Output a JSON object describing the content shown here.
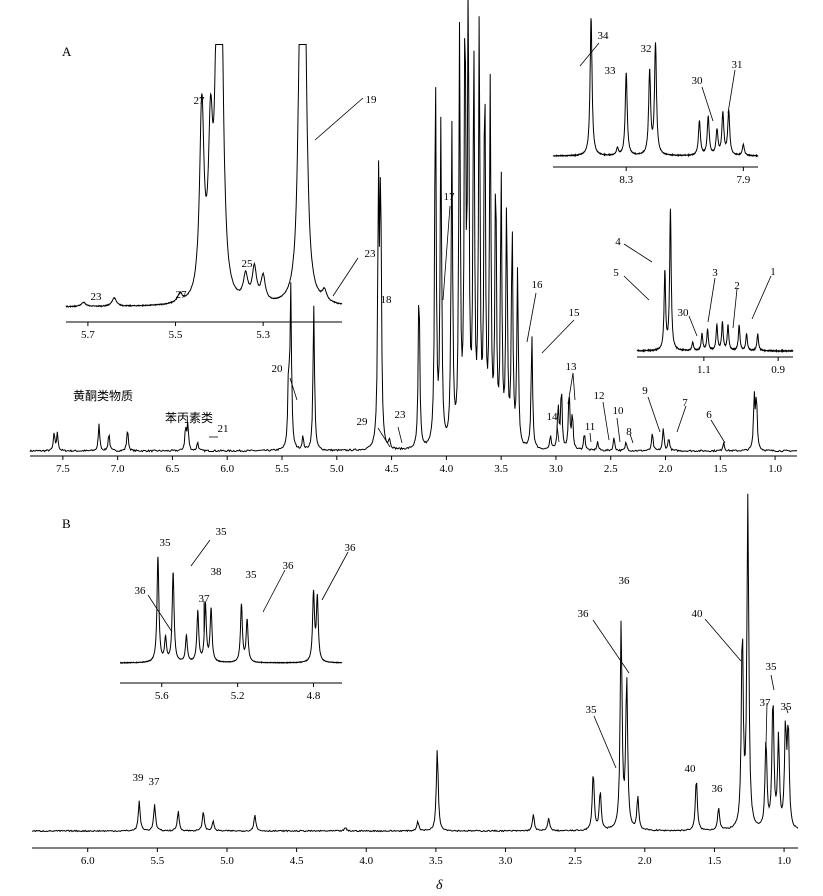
{
  "chart_data": [
    {
      "type": "line",
      "panel_label": "A",
      "xlabel": "",
      "xlim": [
        7.8,
        0.8
      ],
      "x_ticks": [
        "7.5",
        "7.0",
        "6.5",
        "6.0",
        "5.5",
        "5.0",
        "4.5",
        "4.0",
        "3.5",
        "3.0",
        "2.5",
        "2.0",
        "1.5",
        "1.0"
      ],
      "peaks": [
        {
          "x": 7.58,
          "y": 0.04
        },
        {
          "x": 7.55,
          "y": 0.04
        },
        {
          "x": 7.17,
          "y": 0.06
        },
        {
          "x": 7.08,
          "y": 0.04
        },
        {
          "x": 6.91,
          "y": 0.05
        },
        {
          "x": 6.38,
          "y": 0.05
        },
        {
          "x": 6.36,
          "y": 0.06
        },
        {
          "x": 6.27,
          "y": 0.02
        },
        {
          "x": 5.44,
          "y": 0.16
        },
        {
          "x": 5.42,
          "y": 0.36
        },
        {
          "x": 5.31,
          "y": 0.03
        },
        {
          "x": 5.21,
          "y": 0.33
        },
        {
          "x": 4.62,
          "y": 0.58
        },
        {
          "x": 4.6,
          "y": 0.6
        },
        {
          "x": 4.52,
          "y": 0.02
        },
        {
          "x": 4.25,
          "y": 0.38
        },
        {
          "x": 4.1,
          "y": 0.86
        },
        {
          "x": 4.05,
          "y": 0.74
        },
        {
          "x": 3.95,
          "y": 0.72
        },
        {
          "x": 3.88,
          "y": 0.92
        },
        {
          "x": 3.83,
          "y": 0.98
        },
        {
          "x": 3.8,
          "y": 1.0
        },
        {
          "x": 3.75,
          "y": 0.9
        },
        {
          "x": 3.7,
          "y": 0.94
        },
        {
          "x": 3.65,
          "y": 0.85
        },
        {
          "x": 3.6,
          "y": 0.8
        },
        {
          "x": 3.55,
          "y": 0.62
        },
        {
          "x": 3.5,
          "y": 0.6
        },
        {
          "x": 3.45,
          "y": 0.55
        },
        {
          "x": 3.4,
          "y": 0.5
        },
        {
          "x": 3.35,
          "y": 0.4
        },
        {
          "x": 3.22,
          "y": 0.26
        },
        {
          "x": 3.05,
          "y": 0.03
        },
        {
          "x": 2.98,
          "y": 0.1
        },
        {
          "x": 2.95,
          "y": 0.14
        },
        {
          "x": 2.88,
          "y": 0.13
        },
        {
          "x": 2.85,
          "y": 0.08
        },
        {
          "x": 2.74,
          "y": 0.04
        },
        {
          "x": 2.62,
          "y": 0.02
        },
        {
          "x": 2.47,
          "y": 0.03
        },
        {
          "x": 2.36,
          "y": 0.02
        },
        {
          "x": 2.12,
          "y": 0.04
        },
        {
          "x": 2.02,
          "y": 0.05
        },
        {
          "x": 1.97,
          "y": 0.03
        },
        {
          "x": 1.47,
          "y": 0.02
        },
        {
          "x": 1.19,
          "y": 0.12
        },
        {
          "x": 1.17,
          "y": 0.12
        }
      ],
      "annotations": [
        {
          "label": "1",
          "x": 0.9
        },
        {
          "label": "2",
          "x": 1.0
        },
        {
          "label": "3",
          "x": 1.05
        },
        {
          "label": "4",
          "x": 1.16
        },
        {
          "label": "5",
          "x": 1.18
        },
        {
          "label": "6",
          "x": 1.47
        },
        {
          "label": "7",
          "x": 1.96
        },
        {
          "label": "8",
          "x": 2.36
        },
        {
          "label": "9",
          "x": 2.08
        },
        {
          "label": "10",
          "x": 2.45
        },
        {
          "label": "11",
          "x": 2.74
        },
        {
          "label": "12",
          "x": 2.6
        },
        {
          "label": "13",
          "x": 2.9
        },
        {
          "label": "14",
          "x": 3.03
        },
        {
          "label": "15",
          "x": 3.2
        },
        {
          "label": "16",
          "x": 3.33
        },
        {
          "label": "17",
          "x": 4.07
        },
        {
          "label": "18",
          "x": 4.61
        },
        {
          "label": "19",
          "x": 5.21
        },
        {
          "label": "20",
          "x": 5.43
        },
        {
          "label": "21",
          "x": 6.3
        },
        {
          "label": "23",
          "x": 4.52
        },
        {
          "label": "29",
          "x": 4.6
        }
      ],
      "region_labels": [
        "黄酮类物质",
        "苯丙素类"
      ],
      "insets": [
        {
          "x_ticks": [
            "5.7",
            "5.5",
            "5.3"
          ],
          "labels": [
            "23",
            "27",
            "27",
            "25",
            "19",
            "23"
          ]
        },
        {
          "x_ticks": [
            "8.3",
            "7.9"
          ],
          "labels": [
            "34",
            "33",
            "32",
            "30",
            "31"
          ]
        },
        {
          "x_ticks": [
            "1.1",
            "0.9"
          ],
          "labels": [
            "4",
            "5",
            "3",
            "2",
            "1",
            "30"
          ]
        }
      ]
    },
    {
      "type": "line",
      "panel_label": "B",
      "xlabel": "δ",
      "xlim": [
        6.4,
        0.9
      ],
      "x_ticks": [
        "6.0",
        "5.5",
        "5.0",
        "4.5",
        "4.0",
        "3.5",
        "3.0",
        "2.5",
        "2.0",
        "1.5",
        "1.0"
      ],
      "peaks": [
        {
          "x": 5.63,
          "y": 0.09
        },
        {
          "x": 5.52,
          "y": 0.08
        },
        {
          "x": 5.35,
          "y": 0.06
        },
        {
          "x": 5.17,
          "y": 0.06
        },
        {
          "x": 5.1,
          "y": 0.03
        },
        {
          "x": 4.8,
          "y": 0.05
        },
        {
          "x": 4.15,
          "y": 0.01
        },
        {
          "x": 3.63,
          "y": 0.03
        },
        {
          "x": 3.49,
          "y": 0.25
        },
        {
          "x": 2.8,
          "y": 0.05
        },
        {
          "x": 2.69,
          "y": 0.04
        },
        {
          "x": 2.37,
          "y": 0.18
        },
        {
          "x": 2.32,
          "y": 0.12
        },
        {
          "x": 2.17,
          "y": 0.63
        },
        {
          "x": 2.13,
          "y": 0.46
        },
        {
          "x": 2.05,
          "y": 0.1
        },
        {
          "x": 1.63,
          "y": 0.16
        },
        {
          "x": 1.47,
          "y": 0.07
        },
        {
          "x": 1.3,
          "y": 0.6
        },
        {
          "x": 1.26,
          "y": 1.0
        },
        {
          "x": 1.13,
          "y": 0.27
        },
        {
          "x": 1.08,
          "y": 0.4
        },
        {
          "x": 1.04,
          "y": 0.27
        },
        {
          "x": 0.99,
          "y": 0.3
        },
        {
          "x": 0.97,
          "y": 0.3
        }
      ],
      "annotations": [
        {
          "label": "35",
          "x": 2.17
        },
        {
          "label": "36",
          "x": 2.13
        },
        {
          "label": "36",
          "x": 2.17
        },
        {
          "label": "40",
          "x": 1.3
        },
        {
          "label": "40",
          "x": 1.63
        },
        {
          "label": "36",
          "x": 1.47
        },
        {
          "label": "37",
          "x": 1.13
        },
        {
          "label": "35",
          "x": 1.08
        },
        {
          "label": "35",
          "x": 0.99
        },
        {
          "label": "39",
          "x": 5.63
        },
        {
          "label": "37",
          "x": 5.52
        }
      ],
      "insets": [
        {
          "x_ticks": [
            "5.6",
            "5.2",
            "4.8"
          ],
          "labels": [
            "36",
            "35",
            "35",
            "38",
            "37",
            "35",
            "36",
            "36"
          ]
        }
      ]
    }
  ]
}
